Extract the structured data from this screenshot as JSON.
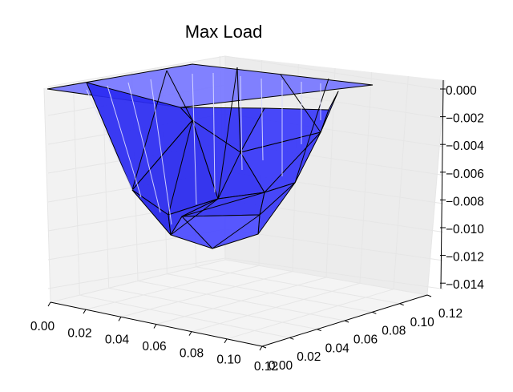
{
  "chart_data": {
    "type": "surface3d",
    "title": "Max Load",
    "xlabel": "",
    "ylabel": "",
    "zlabel": "",
    "x_ticks": [
      "0.00",
      "0.02",
      "0.04",
      "0.06",
      "0.08",
      "0.10",
      "0.12"
    ],
    "y_ticks": [
      "0.00",
      "0.02",
      "0.04",
      "0.06",
      "0.08",
      "0.10",
      "0.12"
    ],
    "z_ticks": [
      "0.000",
      "−0.002",
      "−0.004",
      "−0.006",
      "−0.008",
      "−0.010",
      "−0.012",
      "−0.014"
    ],
    "xlim": [
      0,
      0.12
    ],
    "ylim": [
      0,
      0.12
    ],
    "zlim": [
      -0.015,
      0.0005
    ],
    "grid": true,
    "surface_color": "#3333ff",
    "surface_edge_color": "#000000",
    "pane_color": "#f2f2f2",
    "gridline_color": "#e6e6e6",
    "surface_points": {
      "rim": [
        [
          0,
          0.12,
          0
        ],
        [
          0.12,
          0.12,
          0
        ],
        [
          0.12,
          0,
          0
        ],
        [
          0,
          0,
          0
        ]
      ],
      "upper_ring": [
        [
          0.01,
          0.1,
          -0.0038
        ],
        [
          0.06,
          0.12,
          -0.0003
        ],
        [
          0.11,
          0.1,
          -0.0005
        ],
        [
          0.12,
          0.06,
          -0.0005
        ],
        [
          0.1,
          0.01,
          -0.004
        ],
        [
          0.06,
          0,
          -0.0055
        ],
        [
          0.01,
          0.01,
          -0.0072
        ],
        [
          0,
          0.06,
          -0.006
        ]
      ],
      "lower_ring": [
        [
          0.04,
          0.08,
          -0.0095
        ],
        [
          0.08,
          0.08,
          -0.0095
        ],
        [
          0.08,
          0.04,
          -0.0095
        ],
        [
          0.04,
          0.04,
          -0.0098
        ]
      ],
      "bottom": [
        [
          0.06,
          0.06,
          -0.0135
        ]
      ]
    }
  }
}
